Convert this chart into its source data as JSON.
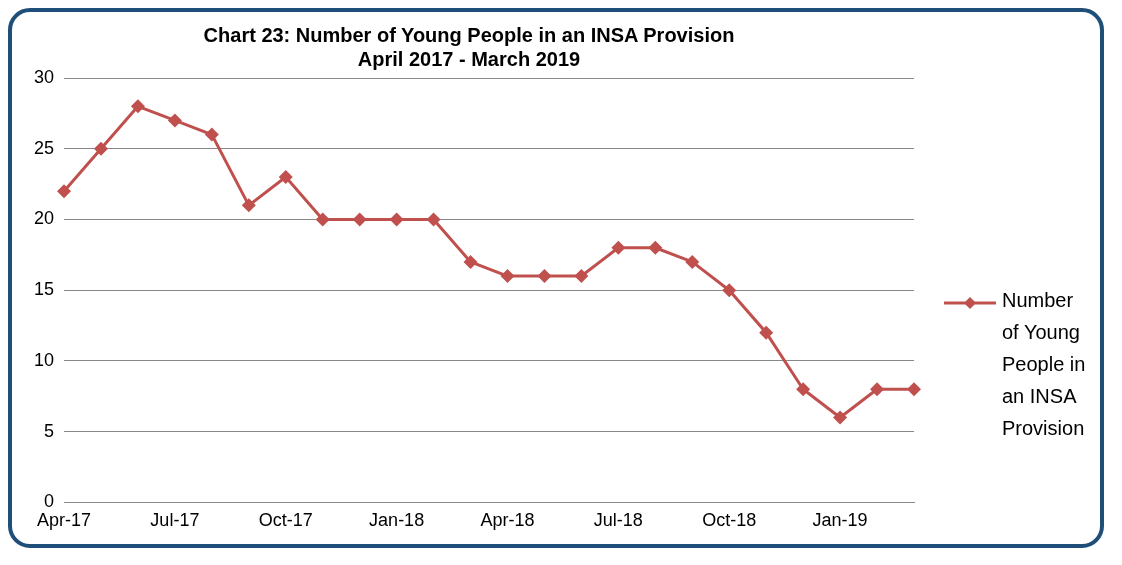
{
  "chart_data": {
    "type": "line",
    "title": "Chart 23: Number of Young People in an INSA Provision\nApril 2017 - March 2019",
    "categories": [
      "Apr-17",
      null,
      null,
      "Jul-17",
      null,
      null,
      "Oct-17",
      null,
      null,
      "Jan-18",
      null,
      null,
      "Apr-18",
      null,
      null,
      "Jul-18",
      null,
      null,
      "Oct-18",
      null,
      null,
      "Jan-19",
      null,
      null
    ],
    "series": [
      {
        "name": "Number of Young People in an INSA Provision",
        "color": "#c0504d",
        "values": [
          22,
          25,
          28,
          27,
          26,
          21,
          23,
          20,
          20,
          20,
          20,
          17,
          16,
          16,
          16,
          18,
          18,
          17,
          15,
          12,
          8,
          6,
          8,
          8
        ]
      }
    ],
    "ylim": [
      0,
      30
    ],
    "yticks": [
      0,
      5,
      10,
      15,
      20,
      25,
      30
    ],
    "grid": "y",
    "legend": "right",
    "marker": "diamond",
    "line_style": "solid"
  }
}
